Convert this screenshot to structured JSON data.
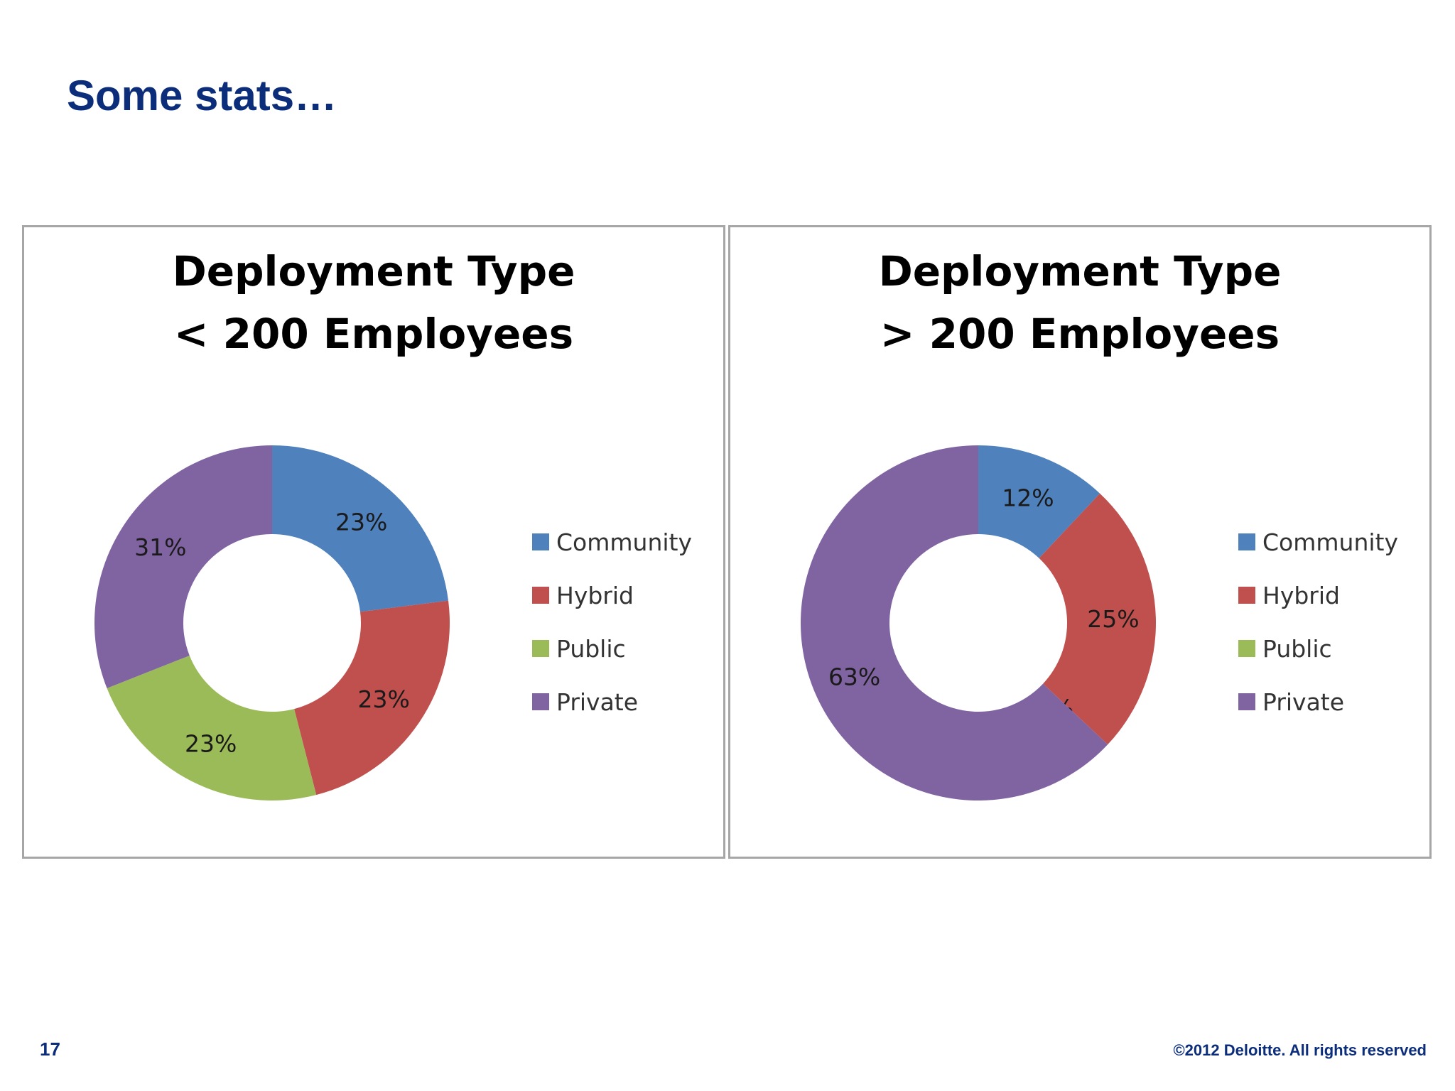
{
  "slide": {
    "title": "Some stats…",
    "page_number": "17",
    "copyright": "©2012 Deloitte. All rights reserved"
  },
  "chart_data": [
    {
      "type": "pie",
      "variant": "doughnut",
      "title_line1": "Deployment Type",
      "title_line2": "< 200 Employees",
      "legend_position": "right",
      "categories": [
        "Community",
        "Hybrid",
        "Public",
        "Private"
      ],
      "values": [
        23,
        23,
        23,
        31
      ],
      "labels": [
        "23%",
        "23%",
        "23%",
        "31%"
      ],
      "colors": [
        "#4f81bd",
        "#c0504d",
        "#9bbb59",
        "#8064a2"
      ]
    },
    {
      "type": "pie",
      "variant": "doughnut",
      "title_line1": "Deployment Type",
      "title_line2": "> 200 Employees",
      "legend_position": "right",
      "categories": [
        "Community",
        "Hybrid",
        "Public",
        "Private"
      ],
      "values": [
        12,
        25,
        0,
        63
      ],
      "labels": [
        "12%",
        "25%",
        "0%",
        "63%"
      ],
      "colors": [
        "#4f81bd",
        "#c0504d",
        "#9bbb59",
        "#8064a2"
      ]
    }
  ]
}
